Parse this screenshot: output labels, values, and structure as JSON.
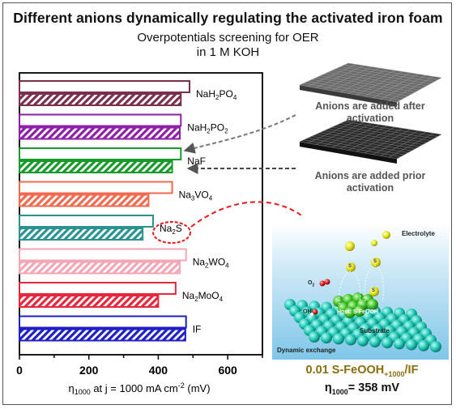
{
  "figure": {
    "title": "Different anions dynamically regulating the activated iron foam",
    "subtitle_line1": "Overpotentials screening for OER",
    "subtitle_line2": "in 1 M KOH"
  },
  "chart_data": {
    "type": "bar",
    "orientation": "horizontal",
    "categories": [
      {
        "label": "NaH",
        "sub1": "2",
        "mid": "PO",
        "sub2": "4"
      },
      {
        "label": "NaH",
        "sub1": "2",
        "mid": "PO",
        "sub2": "2"
      },
      {
        "label": "NaF",
        "sub1": "",
        "mid": "",
        "sub2": ""
      },
      {
        "label": "Na",
        "sub1": "3",
        "mid": "VO",
        "sub2": "4"
      },
      {
        "label": "Na",
        "sub1": "2",
        "mid": "S",
        "sub2": ""
      },
      {
        "label": "Na",
        "sub1": "2",
        "mid": "WO",
        "sub2": "4"
      },
      {
        "label": "Na",
        "sub1": "2",
        "mid": "MoO",
        "sub2": "4"
      },
      {
        "label": "IF",
        "sub1": "",
        "mid": "",
        "sub2": ""
      }
    ],
    "colors": [
      "#7a2f4a",
      "#8e1fa8",
      "#179a29",
      "#ef6a4f",
      "#2a9293",
      "#f2a6b6",
      "#e5283e",
      "#1f1fc5"
    ],
    "series": [
      {
        "pattern": "open",
        "values": [
          490,
          465,
          465,
          440,
          385,
          480,
          450,
          480
        ]
      },
      {
        "pattern": "hatched",
        "values": [
          465,
          462,
          440,
          372,
          355,
          462,
          400,
          478
        ]
      }
    ],
    "xlim": [
      0,
      700
    ],
    "xticks": [
      "0",
      "200",
      "400",
      "600"
    ],
    "xlabel": {
      "main": "η",
      "sub": "1000",
      "text": " at j = 1000 mA cm",
      "sup": "-2",
      "unit": "  (mV)"
    }
  },
  "annotations": {
    "after_line1": "Anions are added after",
    "after_line2": "activation",
    "prior_line1": "Anions are added prior",
    "prior_line2": "activation"
  },
  "scene": {
    "electrolyte": "Electrolyte",
    "host": "Host: S-FeOOH",
    "substrate": "Substrate",
    "dynamic": "Dynamic exchange",
    "s_ion": "S",
    "o2": "O",
    "o2_sub": "2",
    "oh": "OH",
    "oh_sup": "-"
  },
  "result": {
    "line1_main": "0.01 S-FeOOH",
    "line1_sub": "+1000",
    "line1_tail": "/IF",
    "line2_main": "η",
    "line2_sub": "1000",
    "line2_tail": "= 358 mV"
  },
  "styles": {
    "result_color": "#8a6d0d",
    "axis_color": "#000000"
  }
}
